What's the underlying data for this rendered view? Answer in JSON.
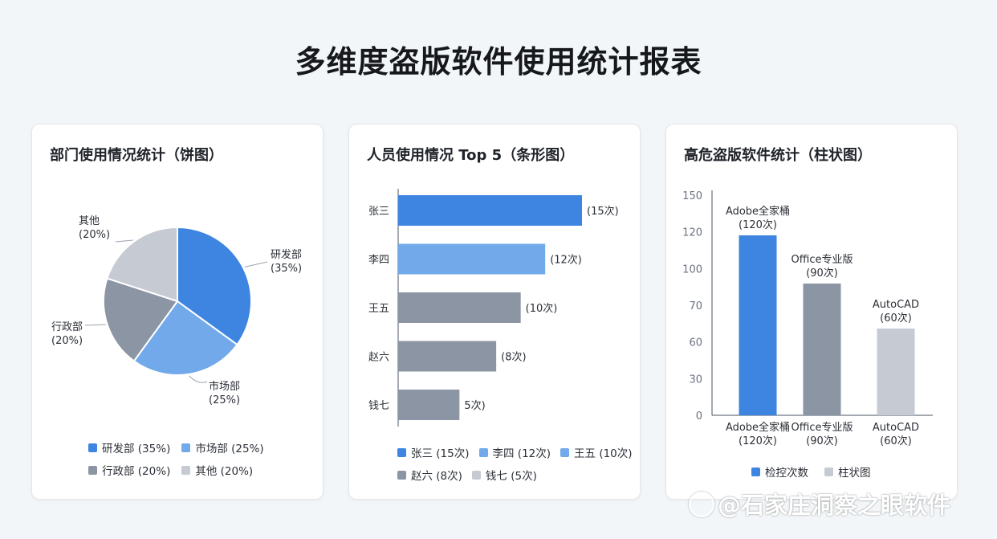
{
  "page": {
    "title": "多维度盗版软件使用统计报表"
  },
  "colors": {
    "blue": "#3d85e0",
    "light_blue": "#72a9ea",
    "gray": "#8b95a3",
    "light_gray": "#c5cad3"
  },
  "watermark": "@石家庄洞察之眼软件",
  "chart_data": [
    {
      "type": "pie",
      "title": "部门使用情况统计（饼图）",
      "categories": [
        "研发部",
        "市场部",
        "行政部",
        "其他"
      ],
      "values": [
        35,
        25,
        20,
        20
      ],
      "unit": "%",
      "slice_labels": [
        {
          "name": "研发部",
          "pct": "(35%)"
        },
        {
          "name": "市场部",
          "pct": "(25%)"
        },
        {
          "name": "行政部",
          "pct": "(20%)"
        },
        {
          "name": "其他",
          "pct": "(20%)"
        }
      ],
      "legend": [
        "研发部 (35%)",
        "市场部 (25%)",
        "行政部 (20%)",
        "其他 (20%)"
      ],
      "legend_placement": "bottom"
    },
    {
      "type": "bar",
      "orientation": "horizontal",
      "title": "人员使用情况 Top 5（条形图）",
      "categories": [
        "张三",
        "李四",
        "王五",
        "赵六",
        "钱七"
      ],
      "values": [
        15,
        12,
        10,
        8,
        5
      ],
      "data_labels": [
        "(15次)",
        "(12次)",
        "(10次)",
        "(8次)",
        "5次)"
      ],
      "legend": [
        "张三 (15次)",
        "李四 (12次)",
        "王五 (10次)",
        "赵六 (8次)",
        "钱七 (5次)"
      ],
      "legend_placement": "bottom"
    },
    {
      "type": "bar",
      "title": "高危盗版软件统计（柱状图）",
      "categories": [
        "Adobe全家桶",
        "Office专业版",
        "AutoCAD"
      ],
      "values": [
        120,
        90,
        60
      ],
      "y_ticks": [
        "150",
        "120",
        "100",
        "70",
        "60",
        "30",
        "0"
      ],
      "top_labels": [
        {
          "name": "Adobe全家桶",
          "count": "(120次)"
        },
        {
          "name": "Office专业版",
          "count": "(90次)"
        },
        {
          "name": "AutoCAD",
          "count": "(60次)"
        }
      ],
      "x_labels": [
        {
          "name": "Adobe全家桶",
          "count": "(120次)"
        },
        {
          "name": "Office专业版",
          "count": "(90次)"
        },
        {
          "name": "AutoCAD",
          "count": "(60次)"
        }
      ],
      "legend": [
        "检控次数",
        "柱状图"
      ],
      "legend_placement": "bottom"
    }
  ]
}
